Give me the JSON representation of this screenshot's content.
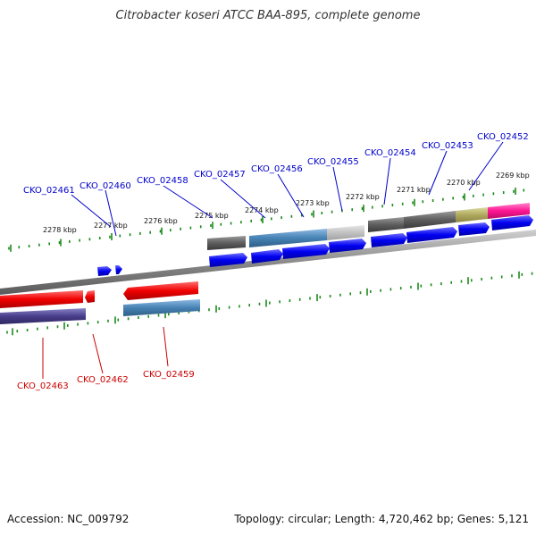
{
  "title": "Citrobacter koseri ATCC BAA-895, complete genome",
  "footer": {
    "accession": "Accession: NC_009792",
    "topology": "Topology: circular; Length: 4,720,462 bp; Genes: 5,121"
  },
  "colors": {
    "forward_gene": "#0000ee",
    "reverse_gene": "#ee0000",
    "forward_label": "#0000cc",
    "reverse_label": "#cc0000",
    "ticks": "#1a8a1a",
    "backbone": "#8c8c8c"
  },
  "kbp_ticks": [
    "2269 kbp",
    "2270 kbp",
    "2271 kbp",
    "2272 kbp",
    "2273 kbp",
    "2274 kbp",
    "2275 kbp",
    "2276 kbp",
    "2277 kbp",
    "2278 kbp"
  ],
  "forward_genes": [
    "CKO_02461",
    "CKO_02460",
    "CKO_02458",
    "CKO_02457",
    "CKO_02456",
    "CKO_02455",
    "CKO_02454",
    "CKO_02453",
    "CKO_02452"
  ],
  "reverse_genes": [
    "CKO_02463",
    "CKO_02462",
    "CKO_02459"
  ]
}
